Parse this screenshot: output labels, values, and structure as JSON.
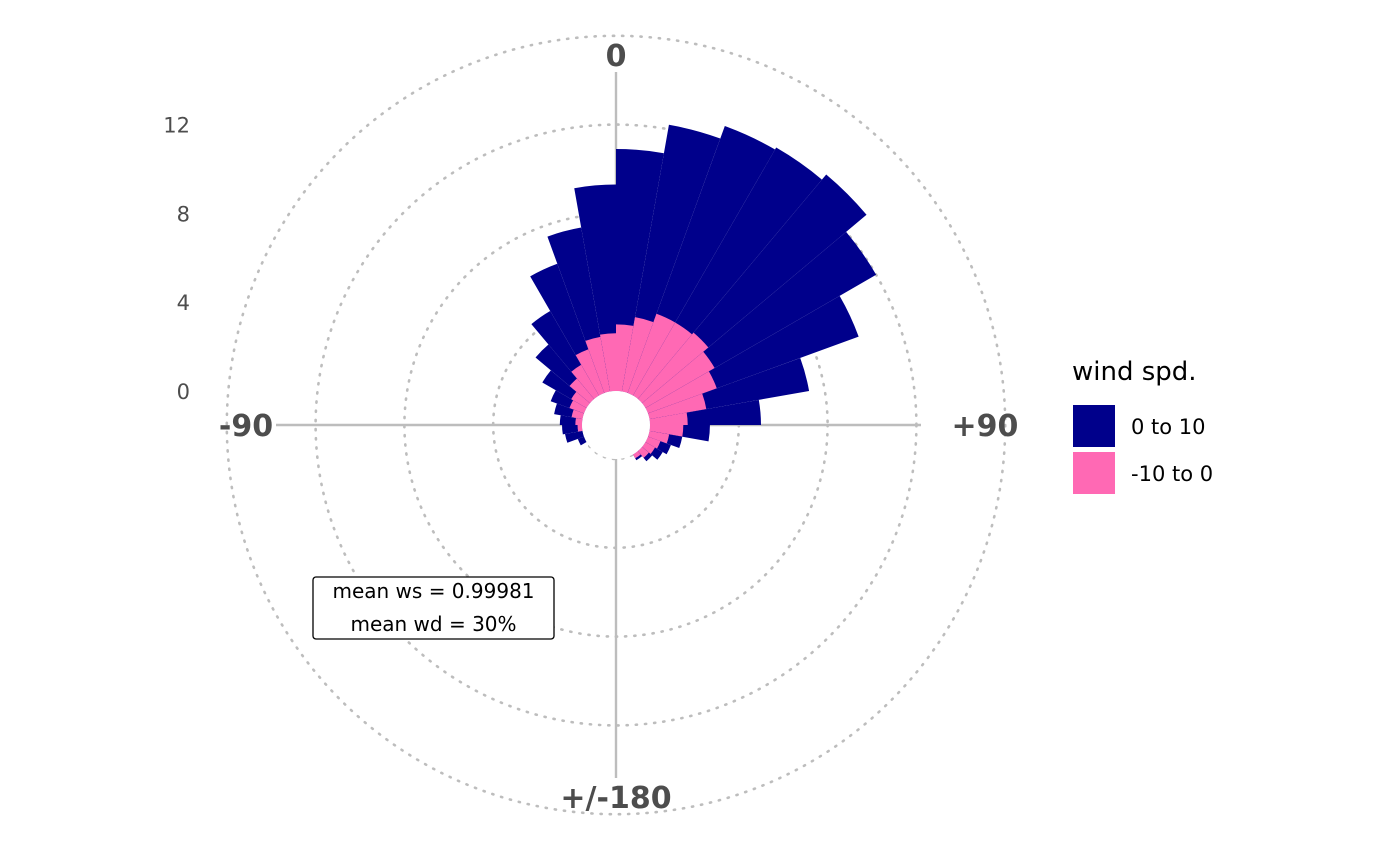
{
  "chart_data": {
    "type": "polar-bar",
    "title": "",
    "radial_ticks": [
      "0",
      "4",
      "8",
      "12"
    ],
    "radial_tick_values": [
      0,
      4,
      8,
      12
    ],
    "radial_grid_values": [
      0,
      4,
      8,
      12,
      16
    ],
    "direction_labels": {
      "top": "0",
      "right": "+90",
      "bottom": "+/-180",
      "left": "-90"
    },
    "legend": {
      "title": "wind spd.",
      "placement": "right",
      "entries": [
        {
          "label": "0 to 10",
          "color": "#00008B"
        },
        {
          "label": "-10 to 0",
          "color": "#FF69B4"
        }
      ]
    },
    "annotation": {
      "line1": "mean ws = 0.99981",
      "line2": "mean wd = 30%"
    },
    "bin_width_deg": 10,
    "bins": [
      {
        "angle": -115,
        "total": 0.3,
        "neg": 0.0
      },
      {
        "angle": -105,
        "total": 0.8,
        "neg": 0.0
      },
      {
        "angle": -95,
        "total": 0.9,
        "neg": 0.2
      },
      {
        "angle": -85,
        "total": 1.0,
        "neg": 0.3
      },
      {
        "angle": -75,
        "total": 1.3,
        "neg": 0.5
      },
      {
        "angle": -65,
        "total": 1.6,
        "neg": 0.7
      },
      {
        "angle": -55,
        "total": 2.3,
        "neg": 0.8
      },
      {
        "angle": -45,
        "total": 3.2,
        "neg": 1.2
      },
      {
        "angle": -35,
        "total": 4.4,
        "neg": 1.6
      },
      {
        "angle": -25,
        "total": 6.2,
        "neg": 2.1
      },
      {
        "angle": -15,
        "total": 7.5,
        "neg": 2.5
      },
      {
        "angle": -5,
        "total": 9.3,
        "neg": 2.6
      },
      {
        "angle": 5,
        "total": 10.9,
        "neg": 3.0
      },
      {
        "angle": 15,
        "total": 12.2,
        "neg": 3.4
      },
      {
        "angle": 25,
        "total": 12.8,
        "neg": 3.8
      },
      {
        "angle": 35,
        "total": 12.9,
        "neg": 3.8
      },
      {
        "angle": 45,
        "total": 13.2,
        "neg": 3.9
      },
      {
        "angle": 55,
        "total": 12.0,
        "neg": 3.6
      },
      {
        "angle": 65,
        "total": 10.1,
        "neg": 3.3
      },
      {
        "angle": 75,
        "total": 7.3,
        "neg": 2.6
      },
      {
        "angle": 85,
        "total": 5.0,
        "neg": 1.7
      },
      {
        "angle": 95,
        "total": 2.7,
        "neg": 1.5
      },
      {
        "angle": 105,
        "total": 1.5,
        "neg": 0.9
      },
      {
        "angle": 115,
        "total": 1.1,
        "neg": 0.6
      },
      {
        "angle": 125,
        "total": 0.9,
        "neg": 0.5
      },
      {
        "angle": 135,
        "total": 0.6,
        "neg": 0.4
      },
      {
        "angle": 145,
        "total": 0.3,
        "neg": 0.2
      }
    ],
    "colors": {
      "positive": "#00008B",
      "negative": "#FF69B4",
      "grid": "#bdbdbd",
      "axis": "#bdbdbd"
    }
  }
}
